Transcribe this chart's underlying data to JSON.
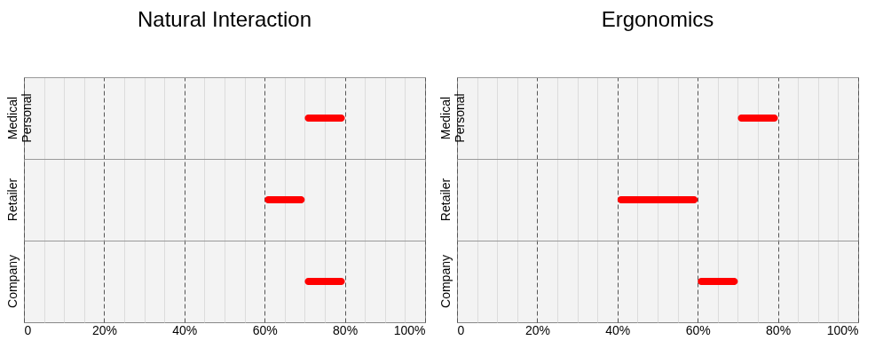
{
  "chart_data": [
    {
      "type": "bar",
      "title": "Natural Interaction",
      "orientation": "horizontal",
      "categories": [
        "Medical Personal",
        "Retailer",
        "Company"
      ],
      "base": [
        70,
        60,
        70
      ],
      "values": [
        10,
        10,
        10
      ],
      "color": "#ff0000",
      "xlim": [
        0,
        100
      ],
      "xticks": [
        0,
        {
          "value": 5,
          "label": null
        },
        {
          "value": 10,
          "label": null
        },
        {
          "value": 15,
          "label": null
        },
        {
          "value": 20,
          "label": "20%"
        },
        {
          "value": 25,
          "label": null
        },
        {
          "value": 30,
          "label": null
        },
        {
          "value": 35,
          "label": null
        },
        {
          "value": 40,
          "label": "40%"
        },
        {
          "value": 45,
          "label": null
        },
        {
          "value": 50,
          "label": null
        },
        {
          "value": 55,
          "label": null
        },
        {
          "value": 60,
          "label": "60%"
        },
        {
          "value": 65,
          "label": null
        },
        {
          "value": 70,
          "label": null
        },
        {
          "value": 75,
          "label": null
        },
        {
          "value": 80,
          "label": "80%"
        },
        {
          "value": 85,
          "label": null
        },
        {
          "value": 90,
          "label": null
        },
        {
          "value": 95,
          "label": null
        },
        {
          "value": 100,
          "label": "100%"
        }
      ],
      "grid": "x"
    },
    {
      "type": "bar",
      "title": "Ergonomics",
      "orientation": "horizontal",
      "categories": [
        "Medical Personal",
        "Retailer",
        "Company"
      ],
      "base": [
        70,
        40,
        60
      ],
      "values": [
        10,
        20,
        10
      ],
      "color": "#ff0000",
      "xlim": [
        0,
        100
      ],
      "xticks": [
        0,
        {
          "value": 5,
          "label": null
        },
        {
          "value": 10,
          "label": null
        },
        {
          "value": 15,
          "label": null
        },
        {
          "value": 20,
          "label": "20%"
        },
        {
          "value": 25,
          "label": null
        },
        {
          "value": 30,
          "label": null
        },
        {
          "value": 35,
          "label": null
        },
        {
          "value": 40,
          "label": "40%"
        },
        {
          "value": 45,
          "label": null
        },
        {
          "value": 50,
          "label": null
        },
        {
          "value": 55,
          "label": null
        },
        {
          "value": 60,
          "label": "60%"
        },
        {
          "value": 65,
          "label": null
        },
        {
          "value": 70,
          "label": null
        },
        {
          "value": 75,
          "label": null
        },
        {
          "value": 80,
          "label": "80%"
        },
        {
          "value": 85,
          "label": null
        },
        {
          "value": 90,
          "label": null
        },
        {
          "value": 95,
          "label": null
        },
        {
          "value": 100,
          "label": "100%"
        }
      ],
      "grid": "x"
    }
  ]
}
